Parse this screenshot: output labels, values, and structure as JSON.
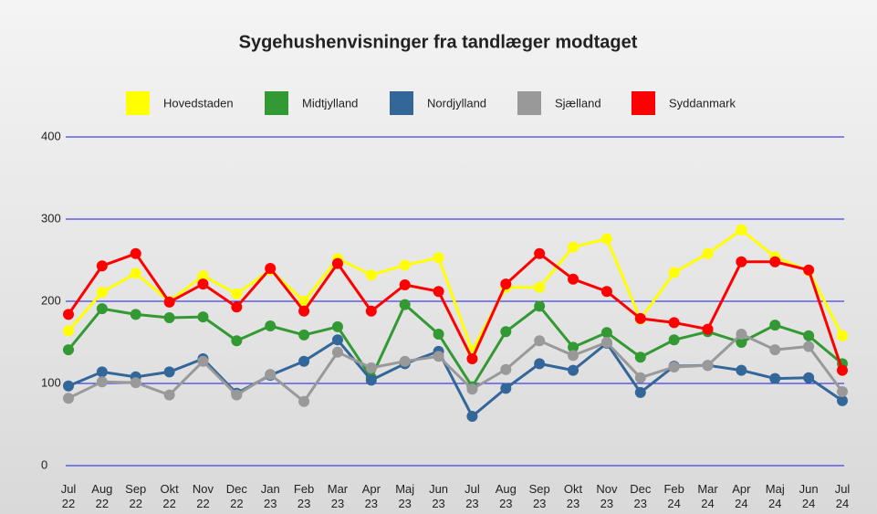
{
  "chart_data": {
    "type": "line",
    "title": "Sygehushenvisninger fra tandlæger modtaget",
    "categories": [
      "Jul 22",
      "Aug 22",
      "Sep 22",
      "Okt 22",
      "Nov 22",
      "Dec 22",
      "Jan 23",
      "Feb 23",
      "Mar 23",
      "Apr 23",
      "Maj 23",
      "Jun 23",
      "Jul 23",
      "Aug 23",
      "Sep 23",
      "Okt 23",
      "Nov 23",
      "Dec 23",
      "Feb 24",
      "Mar 24",
      "Apr 24",
      "Maj 24",
      "Jun 24",
      "Jul 24"
    ],
    "series": [
      {
        "name": "Hovedstaden",
        "color": "#ffff00",
        "values": [
          164,
          211,
          234,
          200,
          231,
          209,
          238,
          200,
          252,
          232,
          244,
          253,
          140,
          217,
          217,
          266,
          276,
          178,
          235,
          258,
          287,
          254,
          237,
          158
        ]
      },
      {
        "name": "Midtjylland",
        "color": "#339933",
        "values": [
          141,
          191,
          184,
          180,
          181,
          152,
          170,
          159,
          169,
          107,
          196,
          160,
          96,
          163,
          194,
          144,
          162,
          132,
          153,
          163,
          150,
          171,
          158,
          124
        ]
      },
      {
        "name": "Nordjylland",
        "color": "#336699",
        "values": [
          97,
          114,
          108,
          114,
          130,
          88,
          110,
          127,
          153,
          104,
          124,
          139,
          60,
          94,
          124,
          116,
          149,
          89,
          121,
          122,
          116,
          106,
          107,
          79
        ]
      },
      {
        "name": "Sjælland",
        "color": "#999999",
        "values": [
          82,
          102,
          101,
          86,
          127,
          86,
          111,
          78,
          138,
          119,
          127,
          133,
          93,
          117,
          152,
          134,
          150,
          107,
          120,
          122,
          160,
          141,
          145,
          90
        ]
      },
      {
        "name": "Syddanmark",
        "color": "#ff0000",
        "values": [
          184,
          243,
          258,
          199,
          221,
          193,
          240,
          188,
          246,
          188,
          220,
          212,
          130,
          221,
          258,
          227,
          212,
          179,
          174,
          166,
          248,
          248,
          238,
          116
        ]
      }
    ],
    "ylim": [
      0,
      400
    ],
    "yticks": [
      0,
      100,
      200,
      300,
      400
    ],
    "grid": true
  }
}
